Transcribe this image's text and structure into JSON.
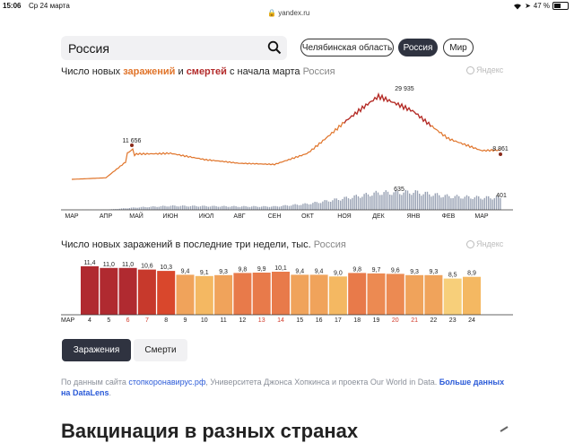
{
  "status_bar": {
    "time": "15:06",
    "date": "Ср 24 марта",
    "url": "yandex.ru",
    "battery": "47 %"
  },
  "search": {
    "value": "Россия"
  },
  "region_pills": [
    "Челябинская область",
    "Россия",
    "Мир"
  ],
  "active_region": "Россия",
  "chart1": {
    "title_prefix": "Число новых ",
    "title_infections": "заражений",
    "title_and": " и ",
    "title_deaths": "смертей",
    "title_suffix": " с начала марта",
    "title_region": "Россия",
    "watermark": "Яндекс",
    "annotations": {
      "peak1": "11 656",
      "peak2": "29 935",
      "last": "8 861",
      "deaths_peak": "635",
      "deaths_last": "401"
    },
    "months": [
      "МАР",
      "АПР",
      "МАЙ",
      "ИЮН",
      "ИЮЛ",
      "АВГ",
      "СЕН",
      "ОКТ",
      "НОЯ",
      "ДЕК",
      "ЯНВ",
      "ФЕВ",
      "МАР"
    ]
  },
  "chart2": {
    "title": "Число новых заражений в последние три недели, тыс.",
    "region": "Россия",
    "watermark": "Яндекс",
    "month_label": "МАР"
  },
  "chart_data": [
    {
      "type": "line",
      "title": "Число новых заражений и смертей с начала марта",
      "x": [
        "МАР",
        "АПР",
        "МАЙ",
        "ИЮН",
        "ИЮЛ",
        "АВГ",
        "СЕН",
        "ОКТ",
        "НОЯ",
        "ДЕК",
        "ЯНВ",
        "ФЕВ",
        "МАР"
      ],
      "series": [
        {
          "name": "заражений",
          "values": [
            0,
            500,
            8500,
            9000,
            6500,
            5200,
            5000,
            9000,
            19000,
            27000,
            23000,
            14000,
            9500
          ]
        },
        {
          "name": "смертей",
          "values": [
            0,
            5,
            80,
            130,
            120,
            110,
            110,
            200,
            380,
            560,
            580,
            440,
            400
          ]
        }
      ],
      "labels": [
        {
          "series": "заражений",
          "value": 11656
        },
        {
          "series": "заражений",
          "value": 29935
        },
        {
          "series": "заражений",
          "value": 8861
        },
        {
          "series": "смертей",
          "value": 635
        },
        {
          "series": "смертей",
          "value": 401
        }
      ]
    },
    {
      "type": "bar",
      "title": "Число новых заражений в последние три недели, тыс.",
      "categories": [
        "4",
        "5",
        "6",
        "7",
        "8",
        "9",
        "10",
        "11",
        "12",
        "13",
        "14",
        "15",
        "16",
        "17",
        "18",
        "19",
        "20",
        "21",
        "22",
        "23",
        "24"
      ],
      "weekend": [
        "6",
        "7",
        "13",
        "14",
        "20",
        "21"
      ],
      "values": [
        11.4,
        11.0,
        11.0,
        10.6,
        10.3,
        9.4,
        9.1,
        9.3,
        9.8,
        9.9,
        10.1,
        9.4,
        9.4,
        9.0,
        9.8,
        9.7,
        9.6,
        9.3,
        9.3,
        8.5,
        8.9
      ],
      "value_labels": [
        "11,4",
        "11,0",
        "11,0",
        "10,6",
        "10,3",
        "9,4",
        "9,1",
        "9,3",
        "9,8",
        "9,9",
        "10,1",
        "9,4",
        "9,4",
        "9,0",
        "9,8",
        "9,7",
        "9,6",
        "9,3",
        "9,3",
        "8,5",
        "8,9"
      ],
      "ylim": [
        0,
        12
      ]
    }
  ],
  "tabs": [
    "Заражения",
    "Смерти"
  ],
  "active_tab": "Заражения",
  "sources": {
    "prefix": "По данным сайта ",
    "site": "стопкоронавирус.рф",
    "part2": ",  Университета Джонса Хопкинса и  проекта Our World in Data. ",
    "more": "Больше данных на DataLens",
    "end": "."
  },
  "section_heading": "Вакцинация в разных странах",
  "colors": {
    "dark_button": "#2f3340",
    "infections": "#e0742a",
    "deaths_accent": "#b32b2b",
    "deaths_bars": "#9aa3b5"
  }
}
